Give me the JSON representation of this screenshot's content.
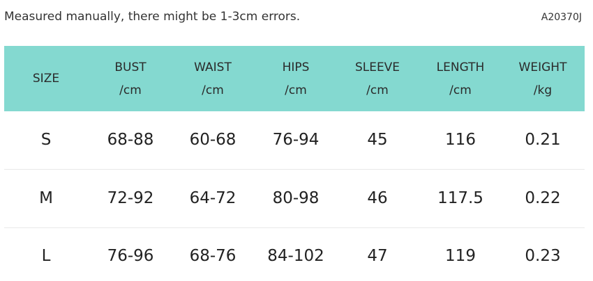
{
  "note": "Measured manually, there might be 1-3cm errors.",
  "code": "A20370J",
  "table": {
    "header": [
      {
        "name": "SIZE"
      },
      {
        "name": "BUST",
        "unit": "/cm"
      },
      {
        "name": "WAIST",
        "unit": "/cm"
      },
      {
        "name": "HIPS",
        "unit": "/cm"
      },
      {
        "name": "SLEEVE",
        "unit": "/cm"
      },
      {
        "name": "LENGTH",
        "unit": "/cm"
      },
      {
        "name": "WEIGHT",
        "unit": "/kg"
      }
    ],
    "rows": [
      [
        "S",
        "68-88",
        "60-68",
        "76-94",
        "45",
        "116",
        "0.21"
      ],
      [
        "M",
        "72-92",
        "64-72",
        "80-98",
        "46",
        "117.5",
        "0.22"
      ],
      [
        "L",
        "76-96",
        "68-76",
        "84-102",
        "47",
        "119",
        "0.23"
      ]
    ]
  }
}
